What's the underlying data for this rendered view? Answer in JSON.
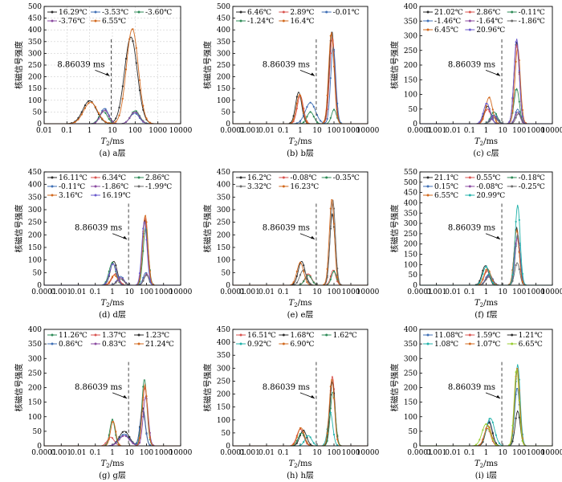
{
  "annotation_text": "8.86039 ms",
  "threshold_ms": 8.86039,
  "ylabel": "核磁信号强度",
  "xlabel_main": "T",
  "xlabel_sub": "2",
  "xlabel_unit": "/ms",
  "chart_data": [
    {
      "type": "line",
      "caption": "(a) a层",
      "xlim": [
        0.01,
        10000
      ],
      "ylim": [
        0,
        500
      ],
      "ystep": 50,
      "xscale": "log",
      "grid": "on",
      "legend": "top-left",
      "series": [
        {
          "name": "16.29℃",
          "color": "#2b2b2b",
          "peaks": [
            [
              1,
              98,
              0.3
            ],
            [
              65,
              370,
              0.28
            ]
          ]
        },
        {
          "name": "-3.53℃",
          "color": "#3f6fb5",
          "peaks": [
            [
              4.5,
              65,
              0.18
            ],
            [
              95,
              45,
              0.2
            ]
          ]
        },
        {
          "name": "-3.60℃",
          "color": "#2e8b57",
          "peaks": [
            [
              4,
              52,
              0.18
            ],
            [
              100,
              55,
              0.2
            ]
          ]
        },
        {
          "name": "-3.76℃",
          "color": "#8a4aa0",
          "peaks": [
            [
              4.5,
              58,
              0.18
            ],
            [
              98,
              50,
              0.2
            ]
          ]
        },
        {
          "name": "6.55℃",
          "color": "#d2691e",
          "peaks": [
            [
              1.1,
              92,
              0.3
            ],
            [
              75,
              405,
              0.26
            ]
          ]
        }
      ]
    },
    {
      "type": "line",
      "caption": "(b) b层",
      "xlim": [
        0.0001,
        10000
      ],
      "ylim": [
        0,
        500
      ],
      "ystep": 50,
      "xscale": "log",
      "grid": "off",
      "legend": "top-left",
      "series": [
        {
          "name": "6.46℃",
          "color": "#2b2b2b",
          "peaks": [
            [
              0.8,
              135,
              0.18
            ],
            [
              75,
              395,
              0.16
            ]
          ]
        },
        {
          "name": "2.89℃",
          "color": "#d9534f",
          "peaks": [
            [
              1,
              120,
              0.18
            ],
            [
              80,
              370,
              0.16
            ]
          ]
        },
        {
          "name": "-0.01℃",
          "color": "#3f6fb5",
          "peaks": [
            [
              4,
              90,
              0.3
            ],
            [
              90,
              330,
              0.15
            ]
          ]
        },
        {
          "name": "-1.24℃",
          "color": "#2e8b57",
          "peaks": [
            [
              4,
              50,
              0.2
            ],
            [
              100,
              60,
              0.15
            ]
          ]
        },
        {
          "name": "16.4℃",
          "color": "#d2691e",
          "peaks": [
            [
              0.9,
              125,
              0.18
            ],
            [
              70,
              390,
              0.16
            ]
          ]
        }
      ]
    },
    {
      "type": "line",
      "caption": "(c) c层",
      "xlim": [
        0.0001,
        10000
      ],
      "ylim": [
        0,
        400
      ],
      "ystep": 50,
      "xscale": "log",
      "grid": "off",
      "legend": "top-left",
      "series": [
        {
          "name": "21.02℃",
          "color": "#2b2b2b",
          "peaks": [
            [
              1.2,
              60,
              0.2
            ],
            [
              70,
              280,
              0.16
            ]
          ]
        },
        {
          "name": "2.86℃",
          "color": "#d9534f",
          "peaks": [
            [
              1.2,
              50,
              0.2
            ],
            [
              70,
              270,
              0.16
            ]
          ]
        },
        {
          "name": "-0.11℃",
          "color": "#2e8b57",
          "peaks": [
            [
              3,
              40,
              0.2
            ],
            [
              70,
              120,
              0.16
            ]
          ]
        },
        {
          "name": "-1.46℃",
          "color": "#3f6fb5",
          "peaks": [
            [
              3,
              30,
              0.2
            ],
            [
              80,
              50,
              0.15
            ]
          ]
        },
        {
          "name": "-1.64℃",
          "color": "#8a4aa0",
          "peaks": [
            [
              3,
              25,
              0.2
            ],
            [
              80,
              40,
              0.15
            ]
          ]
        },
        {
          "name": "-1.86℃",
          "color": "#6b6b6b",
          "peaks": [
            [
              3,
              20,
              0.2
            ],
            [
              90,
              35,
              0.15
            ]
          ]
        },
        {
          "name": "6.45℃",
          "color": "#d2691e",
          "peaks": [
            [
              1.5,
              90,
              0.2
            ],
            [
              80,
              260,
              0.16
            ]
          ]
        },
        {
          "name": "20.96℃",
          "color": "#6a5acd",
          "peaks": [
            [
              1.1,
              70,
              0.2
            ],
            [
              70,
              290,
              0.16
            ]
          ]
        }
      ]
    },
    {
      "type": "line",
      "caption": "(d) d层",
      "xlim": [
        0.0001,
        10000
      ],
      "ylim": [
        0,
        450
      ],
      "ystep": 50,
      "xscale": "log",
      "grid": "off",
      "legend": "top-left",
      "series": [
        {
          "name": "16.11℃",
          "color": "#2b2b2b",
          "peaks": [
            [
              1.2,
              95,
              0.2
            ],
            [
              80,
              260,
              0.15
            ]
          ]
        },
        {
          "name": "6.34℃",
          "color": "#d9534f",
          "peaks": [
            [
              1.5,
              45,
              0.2
            ],
            [
              80,
              270,
              0.15
            ]
          ]
        },
        {
          "name": "2.86℃",
          "color": "#2e8b57",
          "peaks": [
            [
              1,
              90,
              0.2
            ],
            [
              90,
              230,
              0.15
            ]
          ]
        },
        {
          "name": "-0.11℃",
          "color": "#3f6fb5",
          "peaks": [
            [
              3,
              35,
              0.2
            ],
            [
              90,
              50,
              0.15
            ]
          ]
        },
        {
          "name": "-1.86℃",
          "color": "#8a4aa0",
          "peaks": [
            [
              3,
              30,
              0.2
            ],
            [
              100,
              45,
              0.15
            ]
          ]
        },
        {
          "name": "-1.99℃",
          "color": "#6b6b6b",
          "peaks": [
            [
              3,
              25,
              0.2
            ],
            [
              100,
              40,
              0.15
            ]
          ]
        },
        {
          "name": "3.16℃",
          "color": "#d2691e",
          "peaks": [
            [
              1.3,
              40,
              0.2
            ],
            [
              85,
              280,
              0.15
            ]
          ]
        },
        {
          "name": "16.19℃",
          "color": "#6a5acd",
          "peaks": [
            [
              1.1,
              85,
              0.2
            ],
            [
              75,
              255,
              0.15
            ]
          ]
        }
      ]
    },
    {
      "type": "line",
      "caption": "(e) e层",
      "xlim": [
        0.0001,
        10000
      ],
      "ylim": [
        0,
        450
      ],
      "ystep": 50,
      "xscale": "log",
      "grid": "off",
      "legend": "top-left",
      "series": [
        {
          "name": "16.2℃",
          "color": "#2b2b2b",
          "peaks": [
            [
              1.2,
              95,
              0.2
            ],
            [
              80,
              285,
              0.15
            ]
          ]
        },
        {
          "name": "-0.08℃",
          "color": "#d9534f",
          "peaks": [
            [
              3,
              45,
              0.2
            ],
            [
              90,
              60,
              0.15
            ]
          ]
        },
        {
          "name": "-0.35℃",
          "color": "#2e8b57",
          "peaks": [
            [
              3,
              40,
              0.2
            ],
            [
              100,
              55,
              0.15
            ]
          ]
        },
        {
          "name": "3.32℃",
          "color": "#6b6b6b",
          "peaks": [
            [
              1.5,
              60,
              0.2
            ],
            [
              85,
              340,
              0.15
            ]
          ]
        },
        {
          "name": "16.23℃",
          "color": "#d2691e",
          "peaks": [
            [
              1,
              90,
              0.2
            ],
            [
              75,
              345,
              0.15
            ]
          ]
        }
      ]
    },
    {
      "type": "line",
      "caption": "(f) f层",
      "xlim": [
        0.0001,
        10000
      ],
      "ylim": [
        0,
        550
      ],
      "ystep": 50,
      "xscale": "log",
      "grid": "off",
      "legend": "top-left",
      "series": [
        {
          "name": "21.1℃",
          "color": "#2b2b2b",
          "peaks": [
            [
              0.9,
              95,
              0.2
            ],
            [
              70,
              280,
              0.15
            ]
          ]
        },
        {
          "name": "0.55℃",
          "color": "#d9534f",
          "peaks": [
            [
              1.2,
              70,
              0.2
            ],
            [
              75,
              230,
              0.15
            ]
          ]
        },
        {
          "name": "-0.18℃",
          "color": "#2e8b57",
          "peaks": [
            [
              1.5,
              50,
              0.2
            ],
            [
              80,
              240,
              0.15
            ]
          ]
        },
        {
          "name": "0.15℃",
          "color": "#3f6fb5",
          "peaks": [
            [
              1.5,
              55,
              0.2
            ],
            [
              80,
              250,
              0.15
            ]
          ]
        },
        {
          "name": "-0.08℃",
          "color": "#8a4aa0",
          "peaks": [
            [
              1.5,
              45,
              0.2
            ],
            [
              75,
              230,
              0.15
            ]
          ]
        },
        {
          "name": "-0.25℃",
          "color": "#6b6b6b",
          "peaks": [
            [
              1.5,
              40,
              0.2
            ],
            [
              75,
              110,
              0.15
            ]
          ]
        },
        {
          "name": "6.55℃",
          "color": "#d2691e",
          "peaks": [
            [
              1.2,
              80,
              0.2
            ],
            [
              70,
              270,
              0.15
            ]
          ]
        },
        {
          "name": "20.99℃",
          "color": "#20b2aa",
          "peaks": [
            [
              1,
              90,
              0.2
            ],
            [
              80,
              390,
              0.15
            ]
          ]
        }
      ]
    },
    {
      "type": "line",
      "caption": "(g) g层",
      "xlim": [
        0.0001,
        10000
      ],
      "ylim": [
        0,
        400
      ],
      "ystep": 50,
      "xscale": "log",
      "grid": "off",
      "legend": "top-left",
      "series": [
        {
          "name": "11.26℃",
          "color": "#2e8b57",
          "peaks": [
            [
              1,
              90,
              0.15
            ],
            [
              75,
              230,
              0.15
            ]
          ]
        },
        {
          "name": "1.37℃",
          "color": "#d9534f",
          "peaks": [
            [
              0.8,
              30,
              0.2
            ],
            [
              80,
              200,
              0.15
            ]
          ]
        },
        {
          "name": "1.23℃",
          "color": "#2b2b2b",
          "peaks": [
            [
              5,
              50,
              0.3
            ],
            [
              60,
              130,
              0.15
            ]
          ]
        },
        {
          "name": "0.86℃",
          "color": "#3f6fb5",
          "peaks": [
            [
              5,
              40,
              0.3
            ],
            [
              60,
              120,
              0.15
            ]
          ]
        },
        {
          "name": "0.83℃",
          "color": "#8a4aa0",
          "peaks": [
            [
              5,
              35,
              0.3
            ],
            [
              90,
              170,
              0.15
            ]
          ]
        },
        {
          "name": "21.24℃",
          "color": "#d2691e",
          "peaks": [
            [
              1.1,
              85,
              0.15
            ],
            [
              80,
              210,
              0.15
            ]
          ]
        }
      ]
    },
    {
      "type": "line",
      "caption": "(h) h层",
      "xlim": [
        0.0001,
        10000
      ],
      "ylim": [
        0,
        450
      ],
      "ystep": 50,
      "xscale": "log",
      "grid": "off",
      "legend": "top-left",
      "series": [
        {
          "name": "16.51℃",
          "color": "#d9534f",
          "peaks": [
            [
              1,
              65,
              0.2
            ],
            [
              80,
              270,
              0.15
            ]
          ]
        },
        {
          "name": "1.68℃",
          "color": "#2b2b2b",
          "peaks": [
            [
              1.5,
              60,
              0.2
            ],
            [
              80,
              250,
              0.15
            ]
          ]
        },
        {
          "name": "1.62℃",
          "color": "#2e8b57",
          "peaks": [
            [
              1.2,
              50,
              0.2
            ],
            [
              85,
              210,
              0.15
            ]
          ]
        },
        {
          "name": "0.92℃",
          "color": "#20b2aa",
          "peaks": [
            [
              3,
              40,
              0.2
            ],
            [
              60,
              130,
              0.15
            ]
          ]
        },
        {
          "name": "6.90℃",
          "color": "#d2691e",
          "peaks": [
            [
              1.1,
              70,
              0.2
            ],
            [
              75,
              260,
              0.15
            ]
          ]
        }
      ]
    },
    {
      "type": "line",
      "caption": "(i) i层",
      "xlim": [
        0.0001,
        10000
      ],
      "ylim": [
        0,
        400
      ],
      "ystep": 50,
      "xscale": "log",
      "grid": "off",
      "legend": "top-left",
      "series": [
        {
          "name": "11.08℃",
          "color": "#3f6fb5",
          "peaks": [
            [
              1.5,
              85,
              0.2
            ],
            [
              75,
              200,
              0.15
            ]
          ]
        },
        {
          "name": "1.59℃",
          "color": "#d9534f",
          "peaks": [
            [
              1.2,
              60,
              0.2
            ],
            [
              75,
              260,
              0.15
            ]
          ]
        },
        {
          "name": "1.21℃",
          "color": "#2b2b2b",
          "peaks": [
            [
              1.5,
              80,
              0.2
            ],
            [
              80,
              120,
              0.15
            ]
          ]
        },
        {
          "name": "1.08℃",
          "color": "#20b2aa",
          "peaks": [
            [
              1.8,
              95,
              0.25
            ],
            [
              80,
              280,
              0.15
            ]
          ]
        },
        {
          "name": "1.07℃",
          "color": "#d2691e",
          "peaks": [
            [
              1.3,
              70,
              0.2
            ],
            [
              75,
              270,
              0.15
            ]
          ]
        },
        {
          "name": "6.65℃",
          "color": "#9acd32",
          "peaks": [
            [
              1,
              75,
              0.25
            ],
            [
              70,
              265,
              0.15
            ]
          ]
        }
      ]
    }
  ]
}
